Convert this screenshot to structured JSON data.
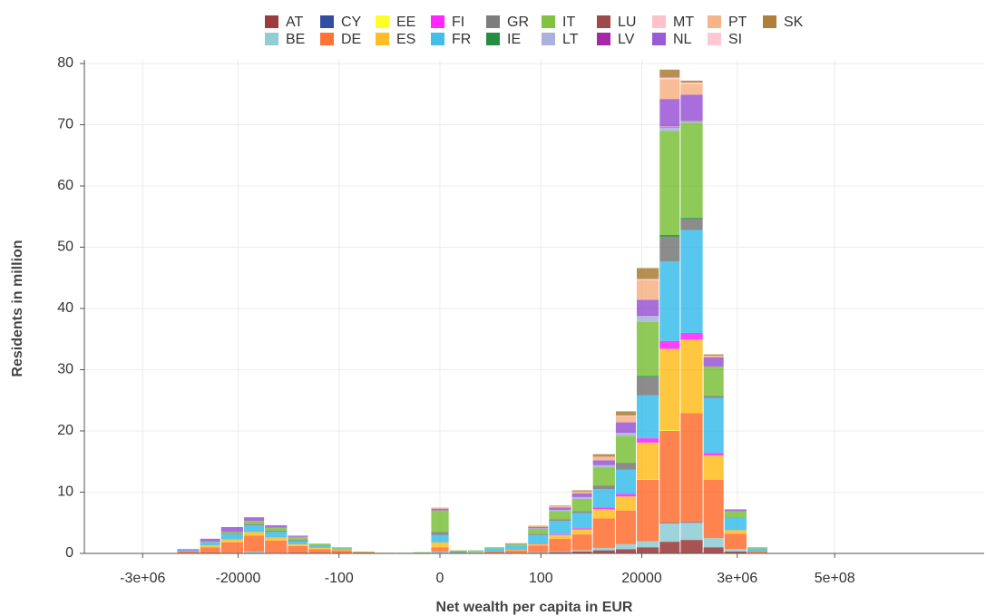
{
  "chart_data": {
    "type": "histogram",
    "x_label": "Net wealth per capita in EUR",
    "y_label": "Residents in million",
    "xscale": "asinh",
    "xlim": [
      -64000000,
      1280000000000
    ],
    "xticks": [
      {
        "value": -3000000,
        "label": "-3e+06"
      },
      -20000,
      -100,
      0,
      100,
      20000,
      {
        "value": 3000000,
        "label": "3e+06"
      },
      {
        "value": 500000000,
        "label": "5e+08"
      }
    ],
    "ylim": [
      0,
      80
    ],
    "yticks": [
      0,
      10,
      20,
      30,
      40,
      50,
      60,
      70,
      80
    ],
    "grid": true,
    "stacked": true,
    "legend": "top",
    "bins": [
      -500000,
      -150000,
      -50000,
      -15000,
      -5000,
      -1500,
      -500,
      -150,
      -50,
      -15,
      -5,
      -2,
      -0.5,
      0.5,
      2,
      5,
      15,
      50,
      150,
      500,
      1500,
      5000,
      15000,
      50000,
      150000,
      500000,
      1500000,
      5000000,
      15000000
    ],
    "series": [
      {
        "name": "AT",
        "color": "#8b1a1a",
        "values": [
          0,
          0,
          0,
          0.1,
          0,
          0,
          0,
          0,
          0,
          0,
          0,
          0,
          0.1,
          0,
          0,
          0,
          0,
          0.1,
          0.2,
          0.3,
          0.5,
          0.7,
          1,
          1.9,
          2.2,
          1,
          0.3,
          0
        ]
      },
      {
        "name": "BE",
        "color": "#7fc4cf",
        "values": [
          0,
          0,
          0.1,
          0.2,
          0.1,
          0,
          0,
          0,
          0,
          0,
          0,
          0,
          0.2,
          0,
          0,
          0,
          0.1,
          0.1,
          0.1,
          0.2,
          0.4,
          0.8,
          1,
          3,
          2.8,
          1.5,
          0.4,
          0.1
        ]
      },
      {
        "name": "CY",
        "color": "#0d2f8f",
        "values": [
          0,
          0,
          0,
          0,
          0,
          0,
          0,
          0,
          0,
          0,
          0,
          0,
          0,
          0,
          0,
          0,
          0,
          0,
          0,
          0,
          0,
          0,
          0,
          0.1,
          0.1,
          0,
          0,
          0
        ]
      },
      {
        "name": "DE",
        "color": "#ff5a14",
        "values": [
          0.3,
          1.0,
          1.7,
          2.6,
          2.0,
          1.2,
          0.7,
          0.5,
          0.2,
          0.1,
          0,
          0,
          0.7,
          0.1,
          0.1,
          0.3,
          0.4,
          1.1,
          2.1,
          2.6,
          4.8,
          5.5,
          10,
          15,
          17.8,
          9.5,
          2.5,
          0.3
        ]
      },
      {
        "name": "EE",
        "color": "#ffff00",
        "values": [
          0,
          0,
          0,
          0,
          0,
          0,
          0,
          0,
          0,
          0,
          0,
          0,
          0,
          0,
          0,
          0,
          0,
          0,
          0,
          0,
          0,
          0,
          0.1,
          0.1,
          0,
          0,
          0,
          0
        ]
      },
      {
        "name": "ES",
        "color": "#ffb300",
        "values": [
          0,
          0.3,
          0.5,
          0.6,
          0.5,
          0.3,
          0.2,
          0.1,
          0,
          0,
          0,
          0,
          0.8,
          0,
          0.1,
          0,
          0.1,
          0.2,
          0.6,
          0.8,
          1.5,
          2.3,
          6,
          13.3,
          12,
          4,
          0.6,
          0
        ]
      },
      {
        "name": "FI",
        "color": "#ff00ff",
        "values": [
          0,
          0,
          0,
          0,
          0,
          0,
          0,
          0,
          0,
          0,
          0,
          0,
          0,
          0,
          0,
          0,
          0,
          0.1,
          0.1,
          0.2,
          0.3,
          0.4,
          0.7,
          1.3,
          1.1,
          0.4,
          0,
          0
        ]
      },
      {
        "name": "FR",
        "color": "#1fb4e8",
        "values": [
          0.2,
          0.5,
          0.8,
          1.1,
          0.9,
          0.5,
          0.3,
          0.2,
          0,
          0,
          0,
          0.1,
          1.2,
          0.1,
          0.2,
          0.5,
          0.6,
          1.4,
          2.2,
          2.5,
          3,
          4,
          7,
          13,
          16.8,
          9,
          2,
          0.4
        ]
      },
      {
        "name": "GR",
        "color": "#666666",
        "values": [
          0,
          0,
          0.1,
          0.2,
          0.2,
          0.2,
          0.1,
          0,
          0,
          0,
          0,
          0,
          0.5,
          0.1,
          0,
          0,
          0,
          0.2,
          0.3,
          0.3,
          0.6,
          1,
          3,
          4,
          1.8,
          0.3,
          0.1,
          0
        ]
      },
      {
        "name": "IE",
        "color": "#007a20",
        "values": [
          0,
          0,
          0,
          0,
          0,
          0,
          0,
          0,
          0,
          0,
          0,
          0,
          0,
          0,
          0,
          0,
          0,
          0,
          0,
          0,
          0,
          0.1,
          0.2,
          0.3,
          0.2,
          0,
          0,
          0
        ]
      },
      {
        "name": "IT",
        "color": "#6ab820",
        "values": [
          0,
          0.1,
          0.3,
          0.5,
          0.5,
          0.5,
          0.3,
          0.2,
          0.1,
          0,
          0.1,
          0.1,
          3.5,
          0.2,
          0.1,
          0.2,
          0.3,
          0.8,
          1.3,
          2,
          3,
          4.4,
          8.8,
          17,
          15.5,
          4.8,
          1,
          0.2
        ]
      },
      {
        "name": "LT",
        "color": "#9aa4d6",
        "values": [
          0,
          0,
          0,
          0,
          0,
          0,
          0,
          0,
          0,
          0,
          0,
          0,
          0,
          0,
          0,
          0,
          0,
          0.1,
          0.2,
          0.3,
          0.3,
          0.5,
          1,
          0.5,
          0.3,
          0,
          0,
          0
        ]
      },
      {
        "name": "LU",
        "color": "#8e2a2a",
        "values": [
          0,
          0,
          0,
          0,
          0,
          0,
          0,
          0,
          0,
          0,
          0,
          0,
          0,
          0,
          0,
          0,
          0,
          0,
          0,
          0,
          0,
          0,
          0,
          0.1,
          0.1,
          0,
          0,
          0
        ]
      },
      {
        "name": "LV",
        "color": "#990099",
        "values": [
          0,
          0,
          0,
          0,
          0,
          0,
          0,
          0,
          0,
          0,
          0,
          0,
          0,
          0,
          0,
          0,
          0,
          0,
          0,
          0,
          0,
          0,
          0.1,
          0,
          0,
          0,
          0,
          0
        ]
      },
      {
        "name": "MT",
        "color": "#ffb6c1",
        "values": [
          0,
          0,
          0,
          0,
          0,
          0,
          0,
          0,
          0,
          0,
          0,
          0,
          0,
          0,
          0,
          0,
          0,
          0,
          0,
          0,
          0,
          0,
          0,
          0.1,
          0,
          0,
          0,
          0
        ]
      },
      {
        "name": "NL",
        "color": "#8b3ecf",
        "values": [
          0.2,
          0.5,
          0.8,
          0.6,
          0.4,
          0.2,
          0,
          0,
          0,
          0,
          0,
          0,
          0.3,
          0,
          0,
          0,
          0.1,
          0.2,
          0.4,
          0.6,
          0.8,
          1.7,
          2.5,
          4.5,
          4.2,
          1.5,
          0.3,
          0
        ]
      },
      {
        "name": "PT",
        "color": "#f4a774",
        "values": [
          0,
          0,
          0,
          0,
          0,
          0,
          0,
          0,
          0,
          0,
          0,
          0,
          0.2,
          0,
          0,
          0,
          0.1,
          0.1,
          0.2,
          0.3,
          0.6,
          1,
          3.2,
          3.2,
          1.8,
          0.3,
          0,
          0
        ]
      },
      {
        "name": "SI",
        "color": "#ffc0cb",
        "values": [
          0,
          0,
          0,
          0,
          0,
          0,
          0,
          0,
          0,
          0,
          0,
          0,
          0,
          0,
          0,
          0,
          0,
          0,
          0,
          0,
          0,
          0.1,
          0.2,
          0.3,
          0.2,
          0,
          0,
          0
        ]
      },
      {
        "name": "SK",
        "color": "#a06a18",
        "values": [
          0,
          0,
          0,
          0,
          0,
          0,
          0,
          0,
          0,
          0,
          0,
          0,
          0,
          0,
          0,
          0,
          0,
          0.1,
          0.1,
          0.2,
          0.4,
          0.7,
          1.8,
          1.3,
          0.3,
          0.2,
          0,
          0
        ]
      }
    ]
  }
}
